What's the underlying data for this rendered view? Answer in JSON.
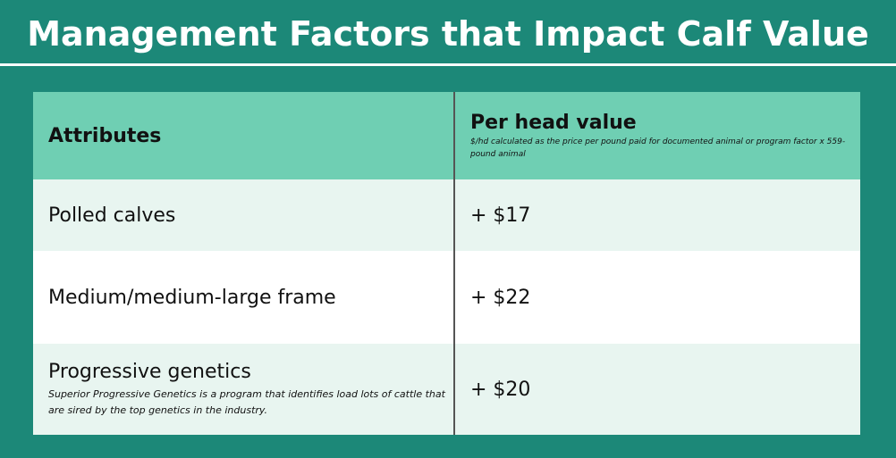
{
  "title": "Management Factors that Impact Calf Value",
  "table": {
    "header": {
      "attribute": "Attributes",
      "value": "Per head value",
      "value_note": "$/hd calculated as the price per pound paid for documented animal or program factor x 559-pound animal"
    },
    "rows": [
      {
        "attribute": "Polled calves",
        "value": "+ $17"
      },
      {
        "attribute": "Medium/medium-large frame",
        "value": "+ $22"
      },
      {
        "attribute": "Progressive genetics",
        "note": "Superior Progressive Genetics is a program that identifies load lots of cattle that are sired by the top genetics in the industry.",
        "value": "+ $20"
      }
    ]
  }
}
